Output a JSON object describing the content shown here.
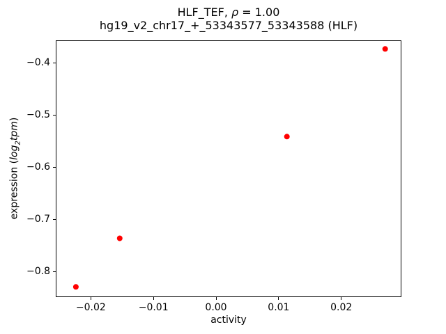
{
  "chart_data": {
    "type": "scatter",
    "title": {
      "part1": "HLF_TEF, ",
      "rho": "ρ",
      "part2": " = 1.00",
      "line2": "hg19_v2_chr17_+_53343577_53343588 (HLF)"
    },
    "xlabel": "activity",
    "ylabel": {
      "prefix": "expression (",
      "log": "log",
      "sub": "2",
      "tpm": "tpm",
      "suffix": ")"
    },
    "xlim": [
      -0.0256,
      0.0296
    ],
    "ylim": [
      -0.849,
      -0.357
    ],
    "xticks": [
      -0.02,
      -0.01,
      0.0,
      0.01,
      0.02
    ],
    "xtick_labels": [
      "−0.02",
      "−0.01",
      "0.00",
      "0.01",
      "0.02"
    ],
    "yticks": [
      -0.4,
      -0.5,
      -0.6,
      -0.7,
      -0.8
    ],
    "ytick_labels": [
      "−0.4",
      "−0.5",
      "−0.6",
      "−0.7",
      "−0.8"
    ],
    "grid": false,
    "legend": false,
    "series": [
      {
        "name": "points",
        "color": "#ff0000",
        "points": [
          [
            -0.0225,
            -0.828
          ],
          [
            -0.0155,
            -0.735
          ],
          [
            0.0112,
            -0.54
          ],
          [
            0.0269,
            -0.372
          ]
        ]
      }
    ]
  }
}
